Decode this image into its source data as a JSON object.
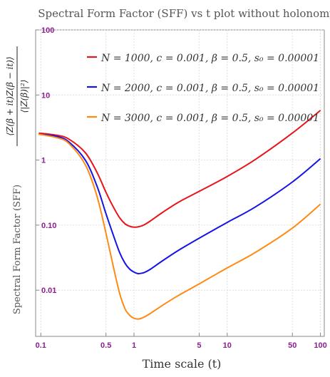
{
  "chart_data": {
    "type": "line",
    "title": "Spectral Form Factor (SFF) vs t plot without holonomy",
    "xlabel": "Time scale (t)",
    "ylabel": "Spectral Form Factor (SFF)",
    "ylabel_formula_num": "⟨Z(β + it)Z(β − it)⟩",
    "ylabel_formula_den": "⟨|Z(β)|²⟩",
    "x_scale": "log",
    "y_scale": "log",
    "xlim": [
      0.088,
      110
    ],
    "ylim": [
      0.00195,
      100
    ],
    "x_ticks": [
      {
        "value": 0.1,
        "label": "0.1"
      },
      {
        "value": 0.5,
        "label": "0.5"
      },
      {
        "value": 1,
        "label": "1"
      },
      {
        "value": 5,
        "label": "5"
      },
      {
        "value": 10,
        "label": "10"
      },
      {
        "value": 50,
        "label": "50"
      },
      {
        "value": 100,
        "label": "100"
      }
    ],
    "y_ticks": [
      {
        "value": 100,
        "label": "100"
      },
      {
        "value": 10,
        "label": "10"
      },
      {
        "value": 1,
        "label": "1"
      },
      {
        "value": 0.1,
        "label": "0.10"
      },
      {
        "value": 0.01,
        "label": "0.01"
      }
    ],
    "grid": true,
    "legend_position": "top-right",
    "series": [
      {
        "name": "N = 1000, c = 0.001, β = 0.5, s₀ = 0.00001",
        "color": "#e8141c",
        "x": [
          0.095,
          0.15,
          0.2,
          0.3,
          0.4,
          0.5,
          0.6,
          0.7,
          0.8,
          0.9,
          1.0,
          1.1,
          1.2,
          1.3,
          1.5,
          2,
          3,
          5,
          10,
          20,
          50,
          100
        ],
        "y": [
          2.6,
          2.4,
          2.1,
          1.3,
          0.65,
          0.32,
          0.19,
          0.13,
          0.105,
          0.096,
          0.093,
          0.094,
          0.097,
          0.102,
          0.116,
          0.155,
          0.225,
          0.33,
          0.56,
          1.02,
          2.6,
          5.8
        ]
      },
      {
        "name": "N = 2000, c = 0.001, β = 0.5, s₀ = 0.00001",
        "color": "#1414e6",
        "x": [
          0.095,
          0.15,
          0.2,
          0.3,
          0.4,
          0.5,
          0.6,
          0.7,
          0.8,
          0.9,
          1.0,
          1.1,
          1.2,
          1.3,
          1.5,
          2,
          3,
          5,
          10,
          20,
          50,
          100
        ],
        "y": [
          2.5,
          2.3,
          1.9,
          1.0,
          0.4,
          0.15,
          0.07,
          0.038,
          0.026,
          0.021,
          0.019,
          0.018,
          0.0182,
          0.0188,
          0.021,
          0.028,
          0.041,
          0.063,
          0.11,
          0.19,
          0.46,
          1.05
        ]
      },
      {
        "name": "N = 3000, c = 0.001, β = 0.5, s₀ = 0.00001",
        "color": "#ff8a12",
        "x": [
          0.095,
          0.15,
          0.2,
          0.3,
          0.4,
          0.5,
          0.6,
          0.7,
          0.8,
          0.9,
          1.0,
          1.1,
          1.2,
          1.3,
          1.5,
          2,
          3,
          5,
          10,
          20,
          50,
          100
        ],
        "y": [
          2.5,
          2.2,
          1.8,
          0.85,
          0.28,
          0.075,
          0.023,
          0.009,
          0.0052,
          0.0041,
          0.0037,
          0.0036,
          0.0037,
          0.0039,
          0.0044,
          0.0058,
          0.0083,
          0.0125,
          0.022,
          0.038,
          0.09,
          0.21
        ]
      }
    ]
  }
}
